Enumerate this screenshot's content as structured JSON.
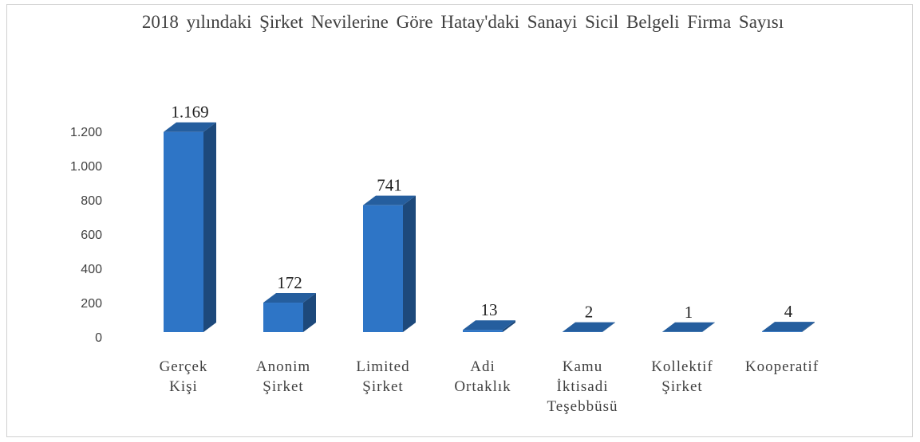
{
  "chart_data": {
    "type": "bar3d",
    "title": "2018 yılındaki Şirket Nevilerine Göre Hatay'daki Sanayi Sicil Belgeli Firma Sayısı",
    "categories": [
      "Gerçek Kişi",
      "Anonim Şirket",
      "Limited Şirket",
      "Adi Ortaklık",
      "Kamu İktisadi Teşebbüsü",
      "Kollektif Şirket",
      "Kooperatif"
    ],
    "values": [
      1169,
      172,
      741,
      13,
      2,
      1,
      4
    ],
    "value_labels": [
      "1.169",
      "172",
      "741",
      "13",
      "2",
      "1",
      "4"
    ],
    "color": "#2e75c6",
    "ylim": [
      0,
      1200
    ],
    "yticks": [
      0,
      200,
      400,
      600,
      800,
      {
        "value": 1000,
        "label": "1.000"
      },
      {
        "value": 1200,
        "label": "1.200"
      }
    ]
  }
}
